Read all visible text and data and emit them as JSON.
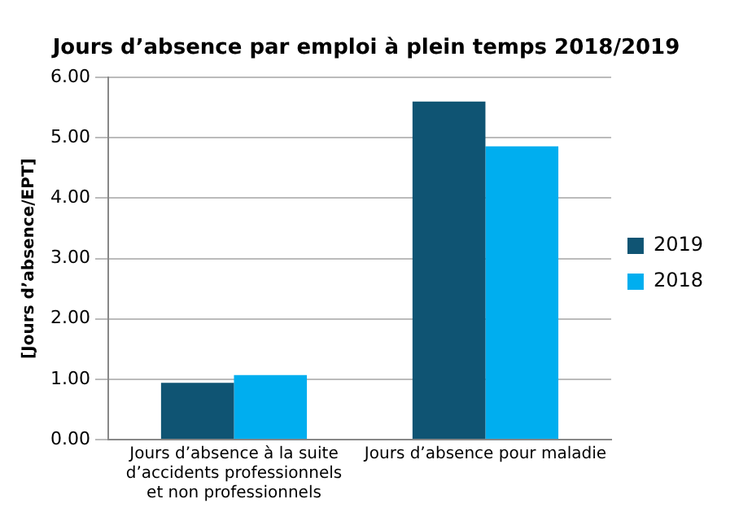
{
  "chart_data": {
    "type": "bar",
    "title": "Jours d’absence par emploi à plein temps 2018/2019",
    "ylabel": "[Jours d’absence/EPT]",
    "categories": [
      "Jours d’absence à la suite d’accidents professionnels et non professionnels",
      "Jours d’absence pour maladie"
    ],
    "series": [
      {
        "name": "2019",
        "color": "#0f5473",
        "values": [
          0.94,
          5.6
        ]
      },
      {
        "name": "2018",
        "color": "#00aeef",
        "values": [
          1.07,
          4.86
        ]
      }
    ],
    "ylim": [
      0,
      6
    ],
    "yticks": [
      {
        "value": 0,
        "label": "0.00"
      },
      {
        "value": 1,
        "label": "1.00"
      },
      {
        "value": 2,
        "label": "2.00"
      },
      {
        "value": 3,
        "label": "3.00"
      },
      {
        "value": 4,
        "label": "4.00"
      },
      {
        "value": 5,
        "label": "5.00"
      },
      {
        "value": 6,
        "label": "6.00"
      }
    ],
    "grid": "y",
    "legend": "right"
  }
}
